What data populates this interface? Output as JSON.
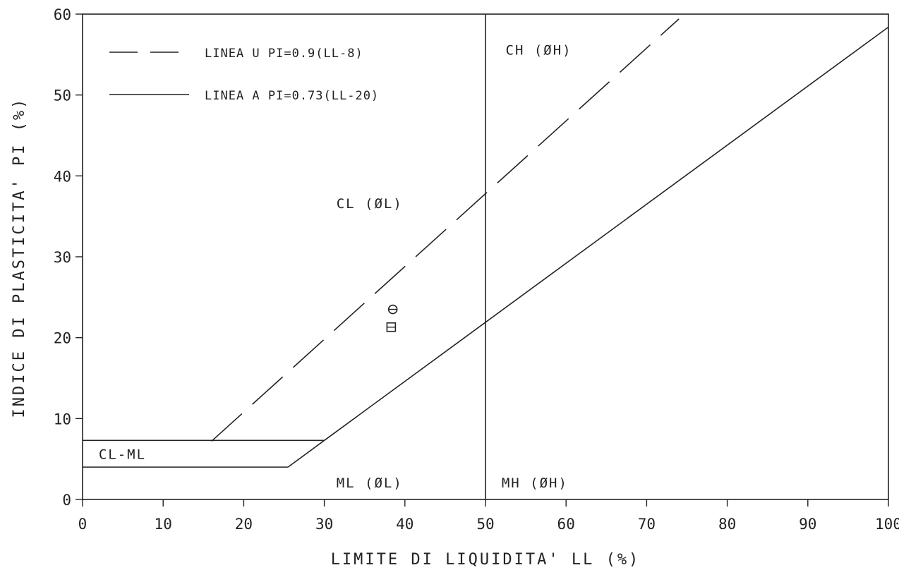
{
  "chart_data": {
    "type": "line",
    "xlabel": "LIMITE DI LIQUIDITA' LL (%)",
    "ylabel": "INDICE DI PLASTICITA' PI (%)",
    "xlim": [
      0,
      100
    ],
    "ylim": [
      0,
      60
    ],
    "xticks": [
      0,
      10,
      20,
      30,
      40,
      50,
      60,
      70,
      80,
      90,
      100
    ],
    "yticks": [
      0,
      10,
      20,
      30,
      40,
      50,
      60
    ],
    "grid": false,
    "legend_position": "top-left",
    "series": [
      {
        "name": "LINEA U  PI=0.9(LL-8)",
        "style": "dashed",
        "x": [
          16,
          74
        ],
        "y": [
          7.2,
          59.4
        ]
      },
      {
        "name": "LINEA A  PI=0.73(LL-20)",
        "style": "solid",
        "x": [
          25.5,
          30,
          100
        ],
        "y": [
          4,
          7.3,
          58.4
        ]
      }
    ],
    "reference_lines": [
      {
        "label": "LL=50",
        "x": [
          50,
          50
        ],
        "y": [
          0,
          60
        ]
      },
      {
        "label": "PI=7",
        "x": [
          0,
          30
        ],
        "y": [
          7.3,
          7.3
        ]
      },
      {
        "label": "PI=4",
        "x": [
          0,
          25.5
        ],
        "y": [
          4,
          4
        ]
      }
    ],
    "points": [
      {
        "marker": "circle",
        "x": 38.5,
        "y": 23.5
      },
      {
        "marker": "square",
        "x": 38.3,
        "y": 21.3
      }
    ],
    "regions": [
      {
        "text": "CH (ØH)",
        "x": 52.5,
        "y": 55
      },
      {
        "text": "CL (ØL)",
        "x": 31.5,
        "y": 36
      },
      {
        "text": "CL-ML",
        "x": 2,
        "y": 5
      },
      {
        "text": "ML (ØL)",
        "x": 31.5,
        "y": 1.5
      },
      {
        "text": "MH (ØH)",
        "x": 52,
        "y": 1.5
      }
    ]
  }
}
